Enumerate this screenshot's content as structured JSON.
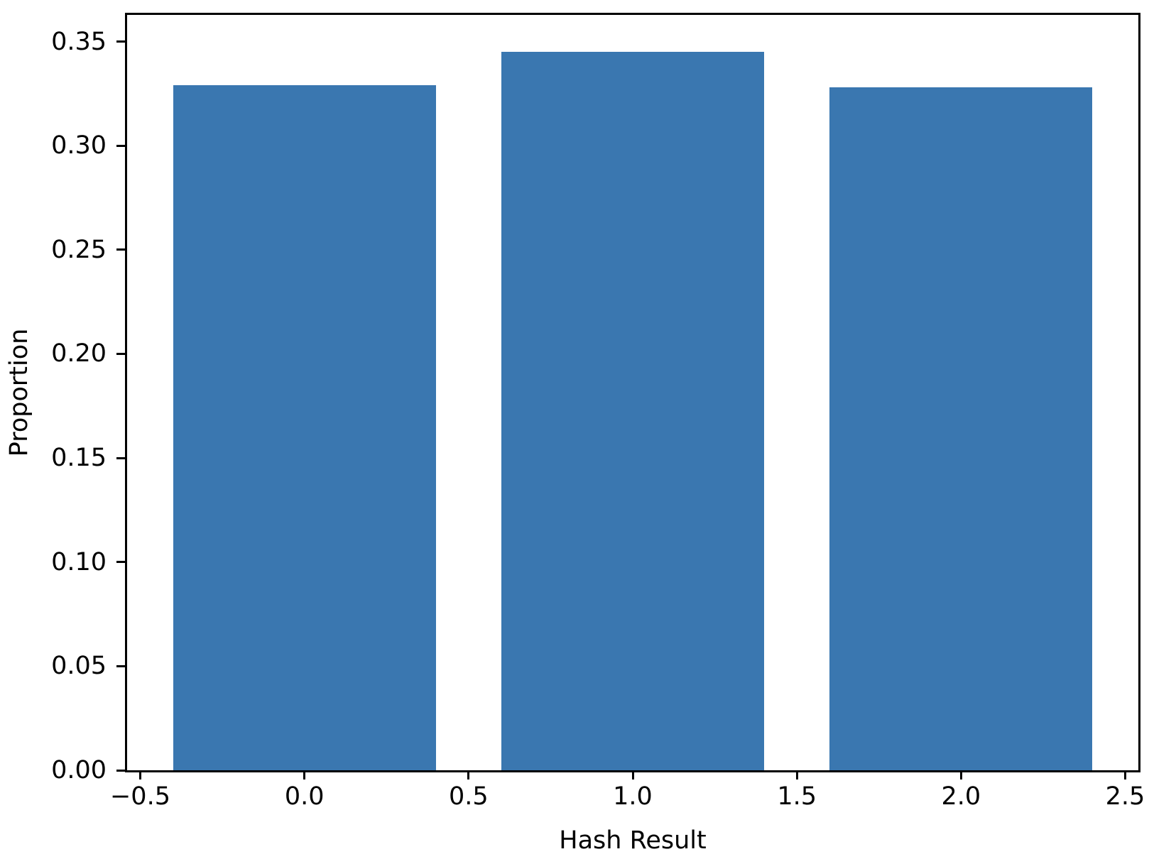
{
  "chart_data": {
    "type": "bar",
    "title": "",
    "xlabel": "Hash Result",
    "ylabel": "Proportion",
    "categories": [
      0,
      1,
      2
    ],
    "values": [
      0.329,
      0.345,
      0.328
    ],
    "bar_width": 0.8,
    "xlim": [
      -0.54,
      2.54
    ],
    "ylim": [
      0,
      0.3628
    ],
    "grid": false,
    "legend": null,
    "xticks": [
      {
        "value": -0.5,
        "label": "−0.5"
      },
      {
        "value": 0.0,
        "label": "0.0"
      },
      {
        "value": 0.5,
        "label": "0.5"
      },
      {
        "value": 1.0,
        "label": "1.0"
      },
      {
        "value": 1.5,
        "label": "1.5"
      },
      {
        "value": 2.0,
        "label": "2.0"
      },
      {
        "value": 2.5,
        "label": "2.5"
      }
    ],
    "yticks": [
      {
        "value": 0.0,
        "label": "0.00"
      },
      {
        "value": 0.05,
        "label": "0.05"
      },
      {
        "value": 0.1,
        "label": "0.10"
      },
      {
        "value": 0.15,
        "label": "0.15"
      },
      {
        "value": 0.2,
        "label": "0.20"
      },
      {
        "value": 0.25,
        "label": "0.25"
      },
      {
        "value": 0.3,
        "label": "0.30"
      },
      {
        "value": 0.35,
        "label": "0.35"
      }
    ],
    "colors": {
      "bar": "#3a77b0",
      "spine": "#000000",
      "text": "#000000",
      "background": "#ffffff"
    }
  }
}
